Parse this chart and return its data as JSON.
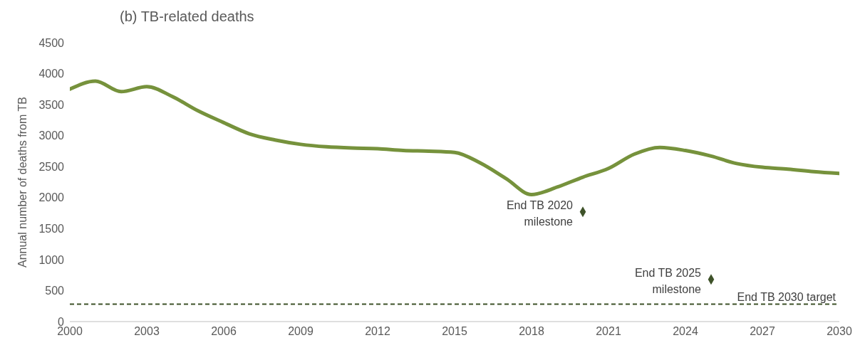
{
  "chart_data": {
    "type": "line",
    "title": "(b) TB-related deaths",
    "ylabel": "Annual number of deaths from TB",
    "xlim": [
      2000,
      2030
    ],
    "xticks": [
      2000,
      2003,
      2006,
      2009,
      2012,
      2015,
      2018,
      2021,
      2024,
      2027,
      2030
    ],
    "ylim": [
      0,
      4500
    ],
    "yticks": [
      0,
      500,
      1000,
      1500,
      2000,
      2500,
      3000,
      3500,
      4000,
      4500
    ],
    "grid": false,
    "series": [
      {
        "color": "#76923c",
        "line_style": "solid",
        "marker": "none",
        "x": [
          2000,
          2001,
          2002,
          2003,
          2004,
          2005,
          2006,
          2007,
          2008,
          2009,
          2010,
          2011,
          2012,
          2013,
          2014,
          2015,
          2016,
          2017,
          2018,
          2019,
          2020,
          2021,
          2022,
          2023,
          2024,
          2025,
          2026,
          2027,
          2028,
          2029,
          2030
        ],
        "values": [
          3750,
          3880,
          3710,
          3790,
          3630,
          3400,
          3210,
          3030,
          2930,
          2860,
          2820,
          2800,
          2790,
          2760,
          2750,
          2730,
          2560,
          2310,
          2050,
          2170,
          2330,
          2470,
          2700,
          2810,
          2760,
          2670,
          2550,
          2490,
          2460,
          2420,
          2390
        ]
      },
      {
        "type": "scatter",
        "color": "#3e5229",
        "marker": "diamond",
        "x": [
          2020,
          2025
        ],
        "values": [
          1770,
          680
        ]
      }
    ],
    "ref_lines": [
      {
        "axis": "y",
        "value": 280,
        "label": "End TB 2030 target",
        "color": "#3e5229",
        "line_style": "dashed"
      }
    ],
    "annotations": [
      {
        "text": "End TB 2020 milestone",
        "x": 2020,
        "y": 1770
      },
      {
        "text": "End TB 2025 milestone",
        "x": 2025,
        "y": 680
      }
    ]
  }
}
